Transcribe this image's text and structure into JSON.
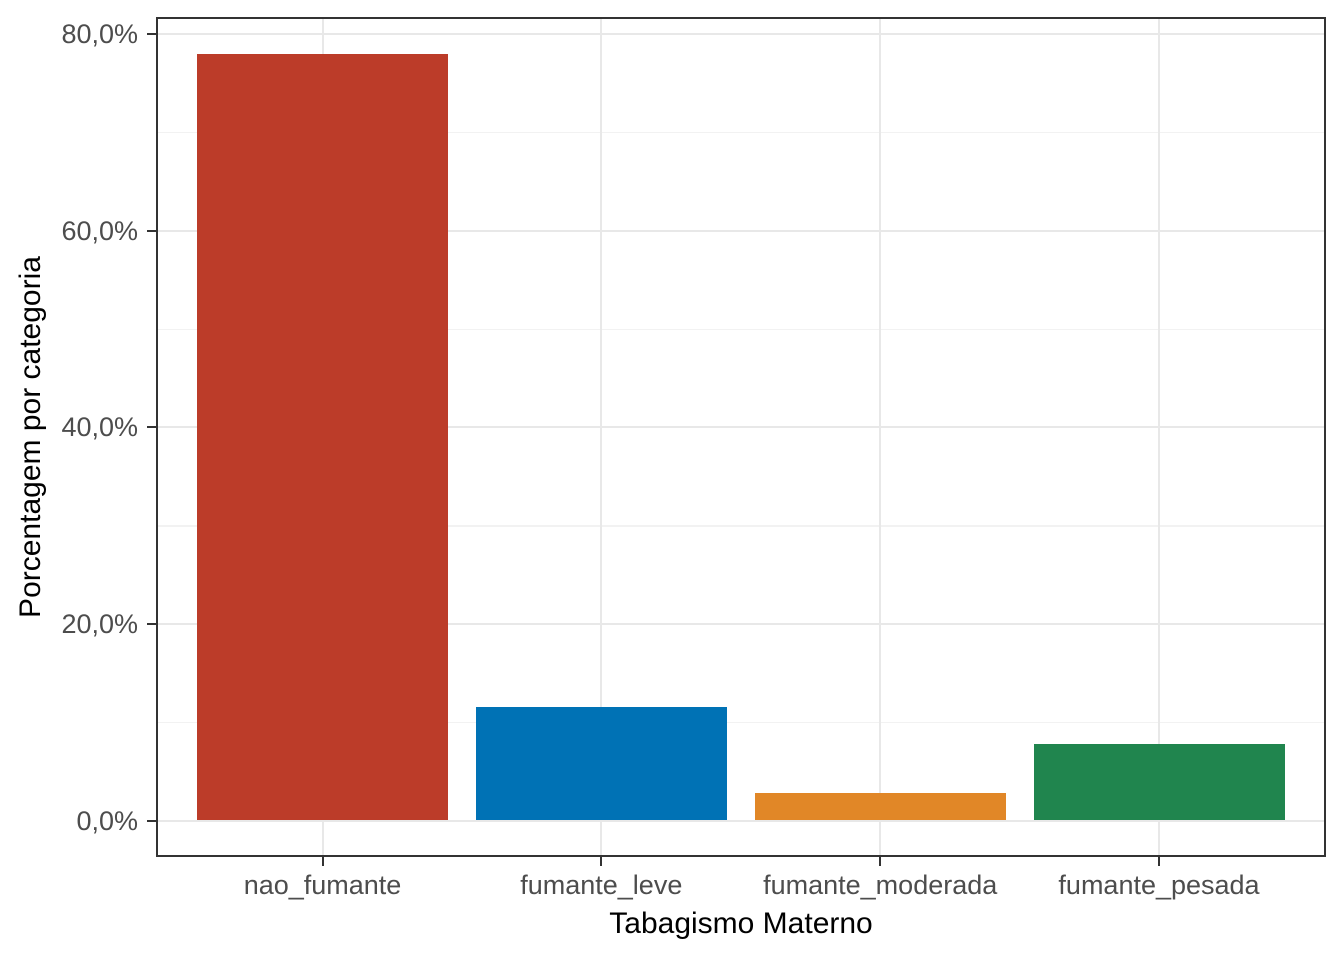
{
  "chart_data": {
    "type": "bar",
    "title": "",
    "xlabel": "Tabagismo Materno",
    "ylabel": "Porcentagem por categoria",
    "categories": [
      "nao_fumante",
      "fumante_leve",
      "fumante_moderada",
      "fumante_pesada"
    ],
    "values": [
      78.0,
      11.5,
      2.8,
      7.8
    ],
    "value_unit": "percent",
    "bar_colors": [
      "#BC3C29",
      "#0072B5",
      "#E18727",
      "#20854E"
    ],
    "ylim": [
      0,
      80
    ],
    "y_major_ticks": [
      {
        "value": 0,
        "label": "0,0%"
      },
      {
        "value": 20,
        "label": "20,0%"
      },
      {
        "value": 40,
        "label": "40,0%"
      },
      {
        "value": 60,
        "label": "60,0%"
      },
      {
        "value": 80,
        "label": "80,0%"
      }
    ],
    "y_minor_ticks": [
      10,
      30,
      50,
      70
    ],
    "grid_on": true,
    "legend_position": "none",
    "colors": {
      "panel_background": "#FFFFFF",
      "panel_border": "#333333",
      "grid_major": "#E8E8E8",
      "grid_minor": "#F2F2F2",
      "axis_text": "#4D4D4D",
      "axis_title": "#000000",
      "tick_mark": "#333333"
    }
  }
}
